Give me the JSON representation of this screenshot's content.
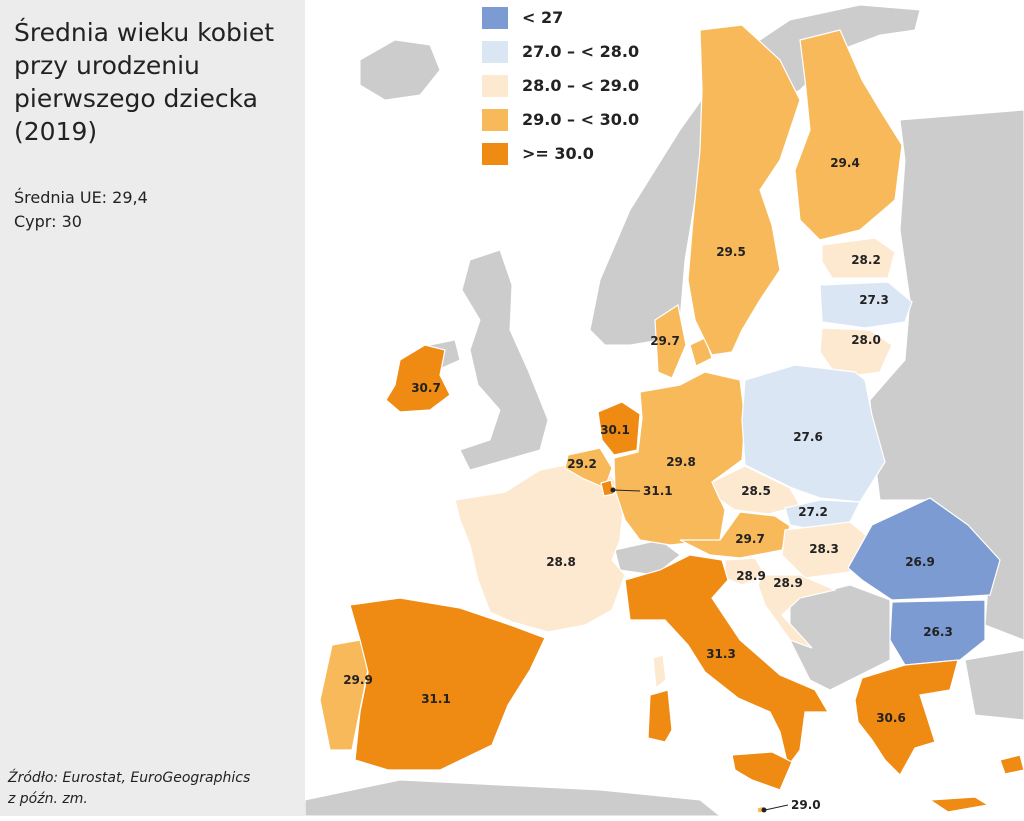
{
  "title": "Średnia wieku kobiet przy urodzeniu pierwszego dziecka (2019)",
  "notes": [
    "Średnia UE: 29,4",
    "Cypr: 30"
  ],
  "source": [
    "Źródło: Eurostat, EuroGeographics",
    "z późn. zm."
  ],
  "legend": [
    {
      "label": "< 27",
      "color": "#7b9bd2"
    },
    {
      "label": "27.0 – < 28.0",
      "color": "#dbe6f5"
    },
    {
      "label": "28.0 – < 29.0",
      "color": "#fde9cf"
    },
    {
      "label": "29.0 – < 30.0",
      "color": "#f8b95a"
    },
    {
      "label": ">= 30.0",
      "color": "#ef8a12"
    }
  ],
  "regions": {
    "ireland": "30.7",
    "netherlands": "30.1",
    "belgium": "29.2",
    "luxembourg": "31.1",
    "germany": "29.8",
    "denmark": "29.7",
    "sweden": "29.5",
    "finland": "29.4",
    "estonia": "28.2",
    "latvia": "27.3",
    "lithuania": "28.0",
    "poland": "27.6",
    "czechia": "28.5",
    "slovakia": "27.2",
    "austria": "29.7",
    "hungary": "28.3",
    "slovenia": "28.9",
    "croatia": "28.9",
    "romania": "26.9",
    "bulgaria": "26.3",
    "greece": "30.6",
    "italy": "31.3",
    "france": "28.8",
    "spain": "31.1",
    "portugal": "29.9",
    "malta": "29.0"
  }
}
